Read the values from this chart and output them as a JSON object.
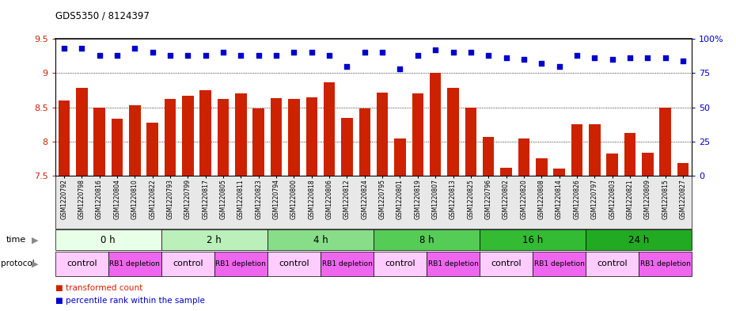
{
  "title": "GDS5350 / 8124397",
  "samples": [
    "GSM1220792",
    "GSM1220798",
    "GSM1220816",
    "GSM1220804",
    "GSM1220810",
    "GSM1220822",
    "GSM1220793",
    "GSM1220799",
    "GSM1220817",
    "GSM1220805",
    "GSM1220811",
    "GSM1220823",
    "GSM1220794",
    "GSM1220800",
    "GSM1220818",
    "GSM1220806",
    "GSM1220812",
    "GSM1220824",
    "GSM1220795",
    "GSM1220801",
    "GSM1220819",
    "GSM1220807",
    "GSM1220813",
    "GSM1220825",
    "GSM1220796",
    "GSM1220802",
    "GSM1220820",
    "GSM1220808",
    "GSM1220814",
    "GSM1220826",
    "GSM1220797",
    "GSM1220803",
    "GSM1220821",
    "GSM1220809",
    "GSM1220815",
    "GSM1220827"
  ],
  "bar_values": [
    8.6,
    8.78,
    8.5,
    8.33,
    8.53,
    8.28,
    8.62,
    8.67,
    8.75,
    8.62,
    8.7,
    8.48,
    8.63,
    8.62,
    8.65,
    8.86,
    8.35,
    8.48,
    8.72,
    8.04,
    8.7,
    9.0,
    8.78,
    8.5,
    8.07,
    7.62,
    8.04,
    7.75,
    7.6,
    8.25,
    8.25,
    7.83,
    8.12,
    7.84,
    8.5,
    7.68
  ],
  "percentile_values": [
    93,
    93,
    88,
    88,
    93,
    90,
    88,
    88,
    88,
    90,
    88,
    88,
    88,
    90,
    90,
    88,
    80,
    90,
    90,
    78,
    88,
    92,
    90,
    90,
    88,
    86,
    85,
    82,
    80,
    88,
    86,
    85,
    86,
    86,
    86,
    84
  ],
  "time_groups": [
    {
      "label": "0 h",
      "start": 0,
      "end": 6,
      "color": "#e8ffe8"
    },
    {
      "label": "2 h",
      "start": 6,
      "end": 12,
      "color": "#bbf0bb"
    },
    {
      "label": "4 h",
      "start": 12,
      "end": 18,
      "color": "#88dd88"
    },
    {
      "label": "8 h",
      "start": 18,
      "end": 24,
      "color": "#55cc55"
    },
    {
      "label": "16 h",
      "start": 24,
      "end": 30,
      "color": "#33bb33"
    },
    {
      "label": "24 h",
      "start": 30,
      "end": 36,
      "color": "#22aa22"
    }
  ],
  "protocol_groups": [
    {
      "label": "control",
      "start": 0,
      "end": 3,
      "color": "#ffccff"
    },
    {
      "label": "RB1 depletion",
      "start": 3,
      "end": 6,
      "color": "#ee66ee"
    },
    {
      "label": "control",
      "start": 6,
      "end": 9,
      "color": "#ffccff"
    },
    {
      "label": "RB1 depletion",
      "start": 9,
      "end": 12,
      "color": "#ee66ee"
    },
    {
      "label": "control",
      "start": 12,
      "end": 15,
      "color": "#ffccff"
    },
    {
      "label": "RB1 depletion",
      "start": 15,
      "end": 18,
      "color": "#ee66ee"
    },
    {
      "label": "control",
      "start": 18,
      "end": 21,
      "color": "#ffccff"
    },
    {
      "label": "RB1 depletion",
      "start": 21,
      "end": 24,
      "color": "#ee66ee"
    },
    {
      "label": "control",
      "start": 24,
      "end": 27,
      "color": "#ffccff"
    },
    {
      "label": "RB1 depletion",
      "start": 27,
      "end": 30,
      "color": "#ee66ee"
    },
    {
      "label": "control",
      "start": 30,
      "end": 33,
      "color": "#ffccff"
    },
    {
      "label": "RB1 depletion",
      "start": 33,
      "end": 36,
      "color": "#ee66ee"
    }
  ],
  "bar_color": "#cc2200",
  "dot_color": "#0000cc",
  "ylim_left": [
    7.5,
    9.5
  ],
  "ylim_right": [
    0,
    100
  ],
  "yticks_left": [
    7.5,
    8.0,
    8.5,
    9.0,
    9.5
  ],
  "ytick_labels_left": [
    "7.5",
    "8",
    "8.5",
    "9",
    "9.5"
  ],
  "yticks_right": [
    0,
    25,
    50,
    75,
    100
  ],
  "ytick_labels_right": [
    "0",
    "25",
    "50",
    "75",
    "100%"
  ],
  "grid_values": [
    8.0,
    8.5,
    9.0
  ],
  "bg_color": "#ffffff",
  "label_color": "#888888"
}
